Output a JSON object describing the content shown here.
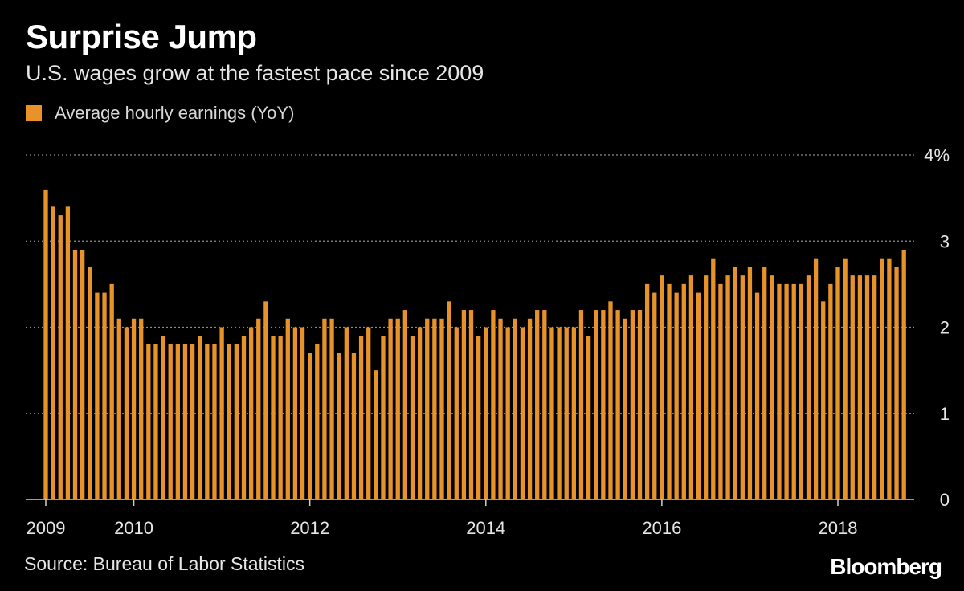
{
  "header": {
    "title": "Surprise Jump",
    "subtitle": "U.S. wages grow at the fastest pace since 2009"
  },
  "legend": {
    "label": "Average hourly earnings (YoY)"
  },
  "footer": {
    "source": "Source: Bureau of Labor Statistics",
    "brand": "Bloomberg"
  },
  "colors": {
    "background": "#000000",
    "bar": "#E8922A"
  },
  "chart_data": {
    "type": "bar",
    "title": "Surprise Jump",
    "subtitle": "U.S. wages grow at the fastest pace since 2009",
    "xlabel": "",
    "ylabel": "",
    "series": [
      {
        "name": "Average hourly earnings (YoY)",
        "start": "2009-01",
        "frequency": "monthly",
        "values": [
          3.6,
          3.4,
          3.3,
          3.4,
          2.9,
          2.9,
          2.7,
          2.4,
          2.4,
          2.5,
          2.1,
          2.0,
          2.1,
          2.1,
          1.8,
          1.8,
          1.9,
          1.8,
          1.8,
          1.8,
          1.8,
          1.9,
          1.8,
          1.8,
          2.0,
          1.8,
          1.8,
          1.9,
          2.0,
          2.1,
          2.3,
          1.9,
          1.9,
          2.1,
          2.0,
          2.0,
          1.7,
          1.8,
          2.1,
          2.1,
          1.7,
          2.0,
          1.7,
          1.9,
          2.0,
          1.5,
          1.9,
          2.1,
          2.1,
          2.2,
          1.9,
          2.0,
          2.1,
          2.1,
          2.1,
          2.3,
          2.0,
          2.2,
          2.2,
          1.9,
          2.0,
          2.2,
          2.1,
          2.0,
          2.1,
          2.0,
          2.1,
          2.2,
          2.2,
          2.0,
          2.0,
          2.0,
          2.0,
          2.2,
          1.9,
          2.2,
          2.2,
          2.3,
          2.2,
          2.1,
          2.2,
          2.2,
          2.5,
          2.4,
          2.6,
          2.5,
          2.4,
          2.5,
          2.6,
          2.4,
          2.6,
          2.8,
          2.5,
          2.6,
          2.7,
          2.6,
          2.7,
          2.4,
          2.7,
          2.6,
          2.5,
          2.5,
          2.5,
          2.5,
          2.6,
          2.8,
          2.3,
          2.5,
          2.7,
          2.8,
          2.6,
          2.6,
          2.6,
          2.6,
          2.8,
          2.8,
          2.7,
          2.9
        ]
      }
    ],
    "x_tick_labels": [
      "2009",
      "2010",
      "2012",
      "2014",
      "2016",
      "2018"
    ],
    "x_tick_values": [
      2009,
      2010,
      2012,
      2014,
      2016,
      2018
    ],
    "y_ticks": [
      0,
      1,
      2,
      3,
      4
    ],
    "y_tick_labels": [
      "0",
      "1",
      "2",
      "3",
      "4%"
    ],
    "ylim": [
      0,
      4
    ],
    "xlim": [
      "2009-01",
      "2018-08"
    ],
    "grid": true,
    "legend_position": "top-left",
    "y_axis_position": "right"
  }
}
